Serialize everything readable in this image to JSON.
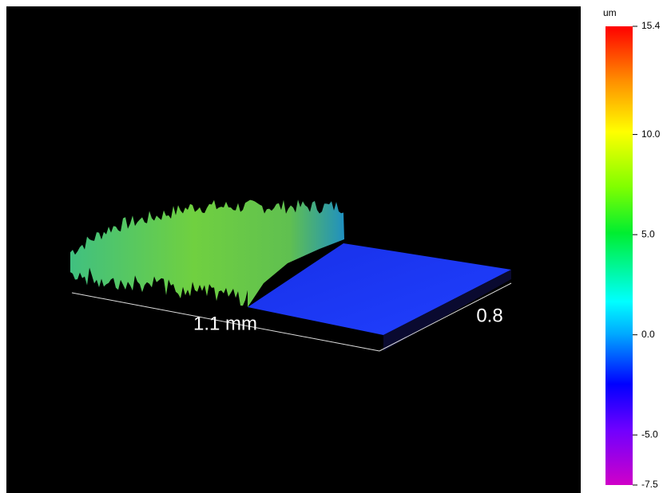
{
  "surface_view": {
    "x_axis_label": "1.1 mm",
    "y_axis_label": "0.8"
  },
  "colorbar": {
    "unit": "um",
    "lim": [
      -7.5,
      15.4
    ],
    "ticks": [
      15.4,
      {
        "value": 10,
        "label": "10.0"
      },
      {
        "value": 5,
        "label": "5.0"
      },
      {
        "value": 0,
        "label": "0.0"
      },
      {
        "value": -5,
        "label": "-5.0"
      },
      -7.5
    ]
  }
}
